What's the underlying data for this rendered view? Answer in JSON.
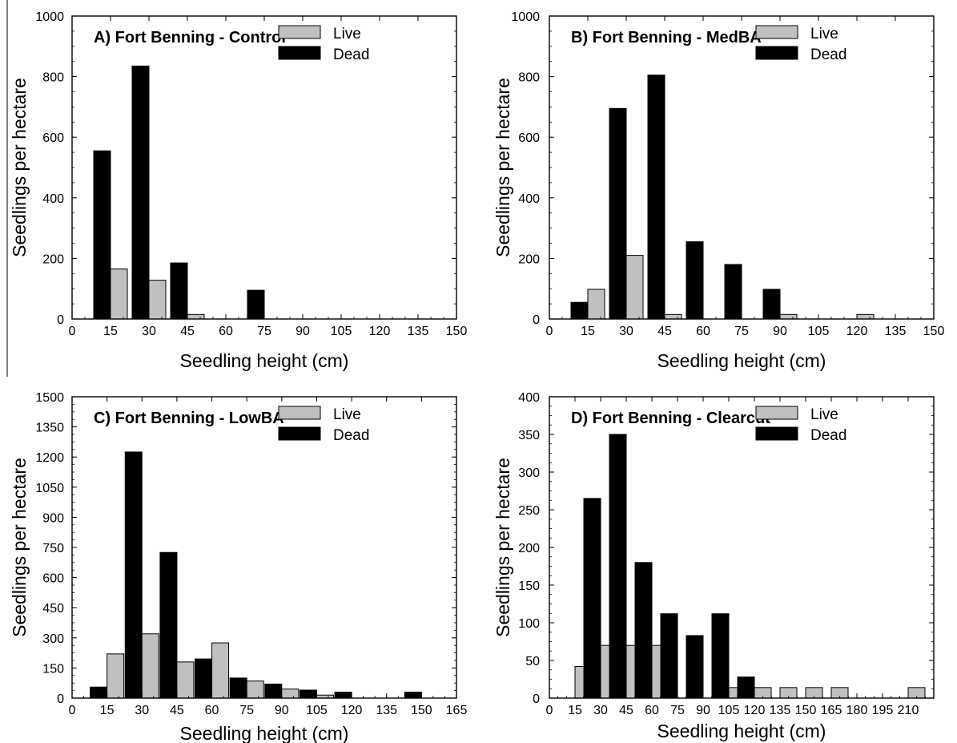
{
  "colors": {
    "live": "#c0c0c0",
    "dead": "#000000",
    "axis": "#000000"
  },
  "chart_data": [
    {
      "type": "bar",
      "title": "A) Fort Benning - Control",
      "xlabel": "Seedling height (cm)",
      "ylabel": "Seedlings per hectare",
      "xlim": [
        0,
        150
      ],
      "ylim": [
        0,
        1000
      ],
      "xticks": [
        "0",
        "15",
        "30",
        "45",
        "60",
        "75",
        "90",
        "105",
        "120",
        "135",
        "150"
      ],
      "yticks": [
        "0",
        "200",
        "400",
        "600",
        "800",
        "1000"
      ],
      "categories": [
        "15",
        "30",
        "45",
        "60",
        "75",
        "90",
        "105",
        "120",
        "135",
        "150"
      ],
      "series": [
        {
          "name": "Live",
          "values": [
            165,
            128,
            15,
            0,
            0,
            0,
            0,
            0,
            0,
            0
          ]
        },
        {
          "name": "Dead",
          "values": [
            555,
            835,
            185,
            0,
            95,
            0,
            0,
            0,
            0,
            0
          ]
        }
      ],
      "legend": "top-right",
      "grid": false
    },
    {
      "type": "bar",
      "title": "B) Fort Benning - MedBA",
      "xlabel": "Seedling height (cm)",
      "ylabel": "Seedlings per hectare",
      "xlim": [
        0,
        150
      ],
      "ylim": [
        0,
        1000
      ],
      "xticks": [
        "0",
        "15",
        "30",
        "45",
        "60",
        "75",
        "90",
        "105",
        "120",
        "135",
        "150"
      ],
      "yticks": [
        "0",
        "200",
        "400",
        "600",
        "800",
        "1000"
      ],
      "categories": [
        "15",
        "30",
        "45",
        "60",
        "75",
        "90",
        "105",
        "120",
        "135",
        "150"
      ],
      "series": [
        {
          "name": "Live",
          "values": [
            98,
            210,
            15,
            0,
            0,
            15,
            0,
            15,
            0,
            0
          ]
        },
        {
          "name": "Dead",
          "values": [
            55,
            695,
            805,
            255,
            180,
            98,
            0,
            0,
            0,
            0
          ]
        }
      ],
      "legend": "top-right",
      "grid": false
    },
    {
      "type": "bar",
      "title": "C) Fort Benning - LowBA",
      "xlabel": "Seedling height (cm)",
      "ylabel": "Seedlings per hectare",
      "xlim": [
        0,
        165
      ],
      "ylim": [
        0,
        1500
      ],
      "xticks": [
        "0",
        "15",
        "30",
        "45",
        "60",
        "75",
        "90",
        "105",
        "120",
        "135",
        "150",
        "165"
      ],
      "yticks": [
        "0",
        "150",
        "300",
        "450",
        "600",
        "750",
        "900",
        "1050",
        "1200",
        "1350",
        "1500"
      ],
      "categories": [
        "15",
        "30",
        "45",
        "60",
        "75",
        "90",
        "105",
        "120",
        "135",
        "150",
        "165"
      ],
      "series": [
        {
          "name": "Live",
          "values": [
            220,
            320,
            180,
            275,
            85,
            45,
            15,
            0,
            0,
            0,
            0
          ]
        },
        {
          "name": "Dead",
          "values": [
            55,
            1225,
            725,
            195,
            100,
            70,
            40,
            30,
            0,
            30,
            0
          ]
        }
      ],
      "legend": "top-right",
      "grid": false
    },
    {
      "type": "bar",
      "title": "D) Fort Benning - Clearcut",
      "xlabel": "Seedling height (cm)",
      "ylabel": "Seedlings per hectare",
      "xlim": [
        0,
        225
      ],
      "ylim": [
        0,
        400
      ],
      "xticks": [
        "0",
        "15",
        "30",
        "45",
        "60",
        "75",
        "90",
        "105",
        "120",
        "135",
        "150",
        "165",
        "180",
        "195",
        "210"
      ],
      "yticks": [
        "0",
        "50",
        "100",
        "150",
        "200",
        "250",
        "300",
        "350",
        "400"
      ],
      "categories": [
        "15",
        "30",
        "45",
        "60",
        "75",
        "90",
        "105",
        "120",
        "135",
        "150",
        "165",
        "180",
        "195",
        "210"
      ],
      "series": [
        {
          "name": "Live",
          "values": [
            42,
            70,
            70,
            70,
            0,
            0,
            14,
            14,
            14,
            14,
            14,
            0,
            0,
            14
          ]
        },
        {
          "name": "Dead",
          "values": [
            0,
            265,
            350,
            180,
            112,
            83,
            112,
            28,
            0,
            0,
            0,
            0,
            0,
            0
          ]
        }
      ],
      "legend": "top-right",
      "grid": false
    }
  ]
}
